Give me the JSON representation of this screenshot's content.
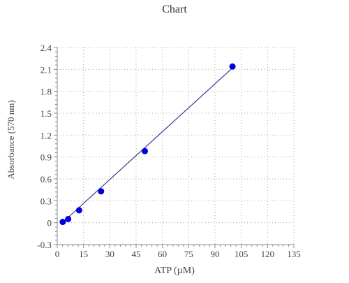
{
  "chart_data": {
    "type": "scatter",
    "title": "Chart",
    "xlabel": "ATP (µM)",
    "ylabel": "Absorbance (570 nm)",
    "xlim": [
      0,
      135
    ],
    "ylim": [
      -0.3,
      2.4
    ],
    "xticks": [
      "0",
      "15",
      "30",
      "45",
      "60",
      "75",
      "90",
      "105",
      "120",
      "135"
    ],
    "yticks": [
      "-0.3",
      "0",
      "0.3",
      "0.6",
      "0.9",
      "1.2",
      "1.5",
      "1.8",
      "2.1",
      "2.4"
    ],
    "grid": true,
    "series": [
      {
        "type": "scatter",
        "x": [
          3.125,
          6.25,
          12.5,
          25,
          50,
          100
        ],
        "y": [
          0.01,
          0.05,
          0.17,
          0.43,
          0.98,
          2.14
        ]
      },
      {
        "type": "line",
        "x": [
          3.125,
          100
        ],
        "y": [
          0.005,
          2.12
        ]
      }
    ],
    "colors": {
      "points": "#0000dd",
      "line": "#3b3b8c",
      "grid": "#aaaaaa",
      "axis": "#888888",
      "text": "#444444"
    }
  }
}
